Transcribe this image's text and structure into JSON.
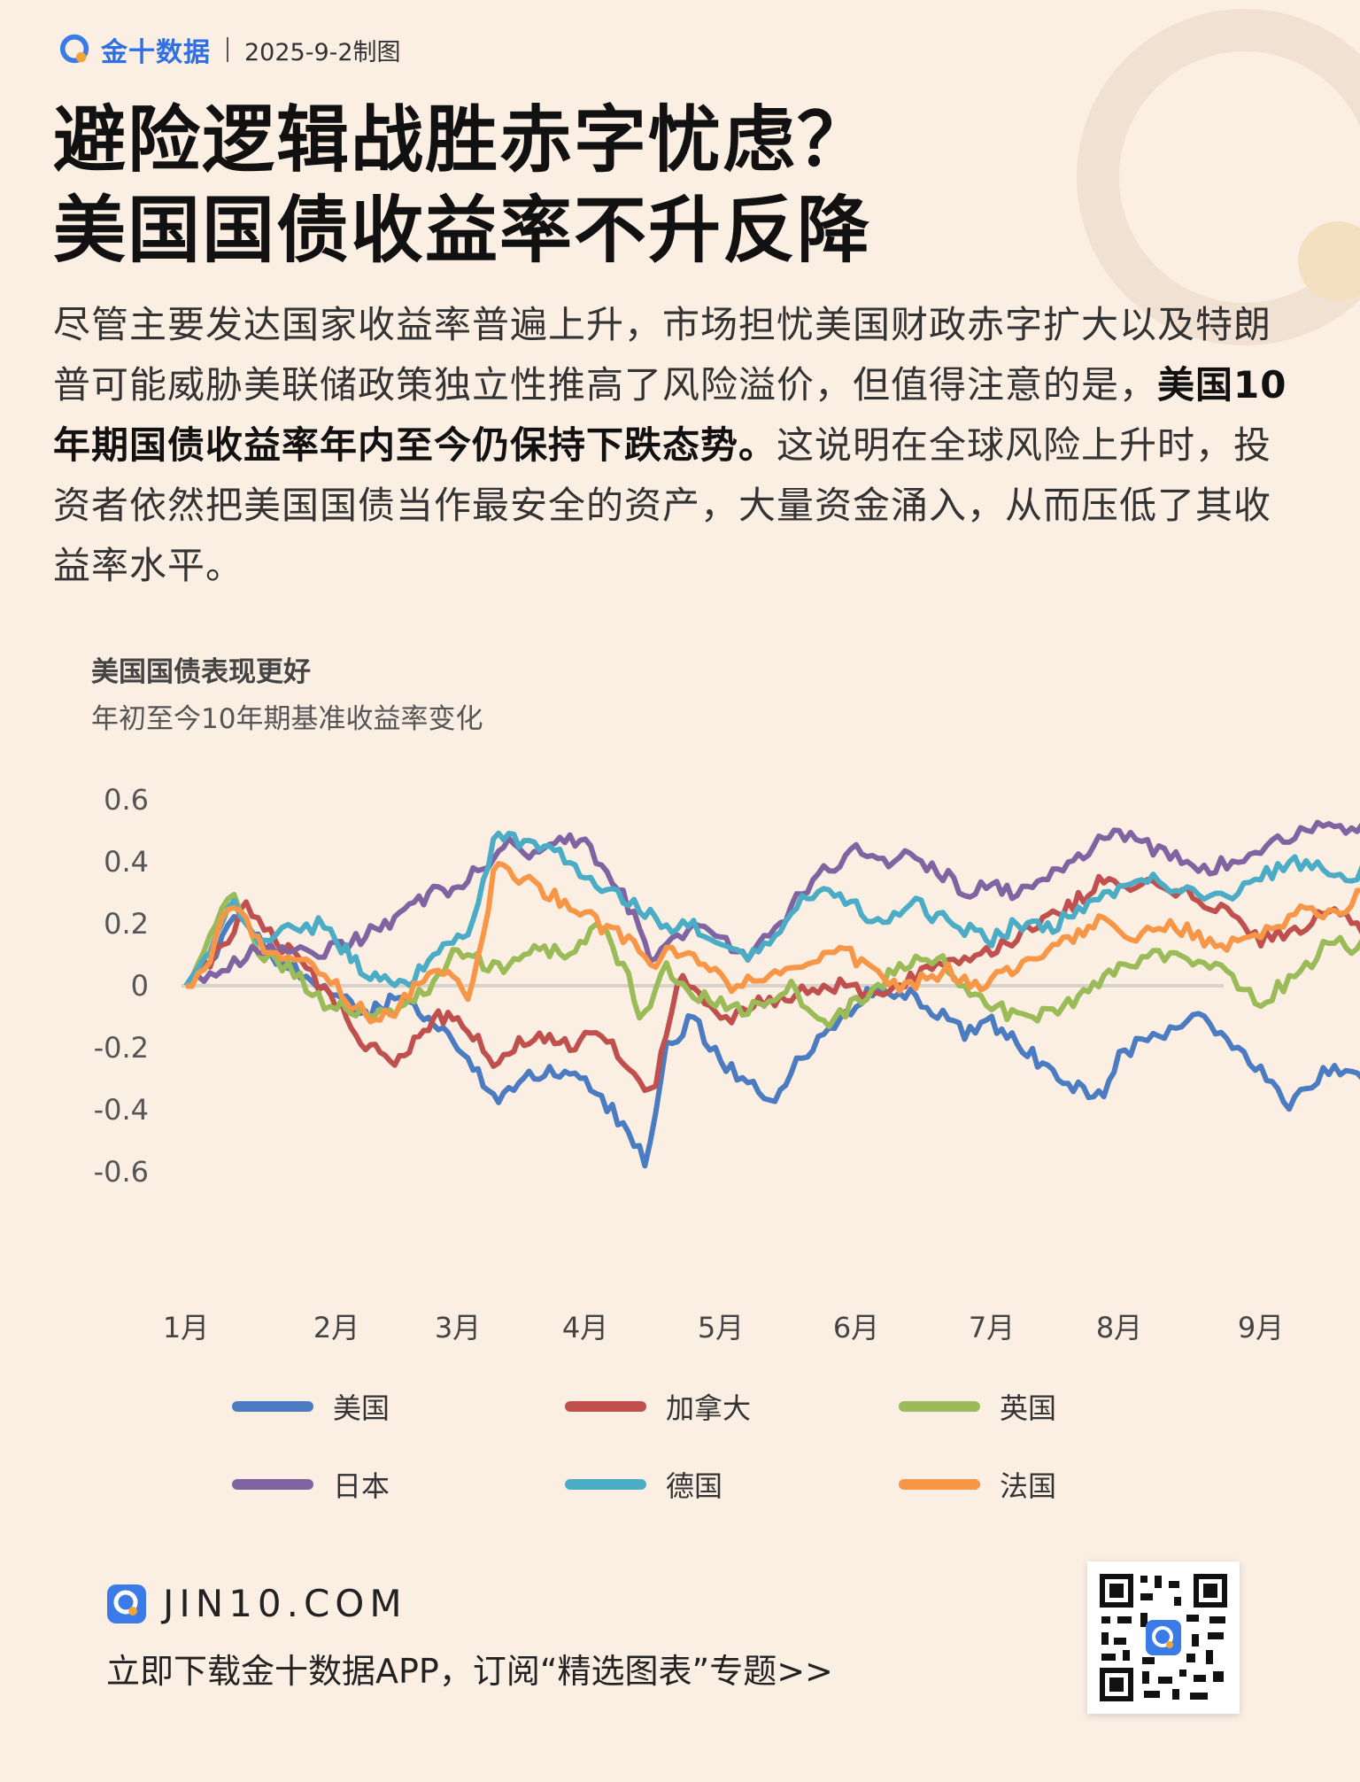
{
  "header": {
    "brand": "金十数据",
    "date": "2025-9-2制图"
  },
  "title": {
    "line1": "避险逻辑战胜赤字忧虑？",
    "line2": "美国国债收益率不升反降"
  },
  "body": {
    "part1": "尽管主要发达国家收益率普遍上升，市场担忧美国财政赤字扩大以及特朗普可能威胁美联储政策独立性推高了风险溢价，但值得注意的是，",
    "bold": "美国10年期国债收益率年内至今仍保持下跌态势。",
    "part2": "这说明在全球风险上升时，投资者依然把美国国债当作最安全的资产，大量资金涌入，从而压低了其收益率水平。"
  },
  "chart_data": {
    "type": "line",
    "title": "美国国债表现更好",
    "subtitle": "年初至今10年期基准收益率变化",
    "x_ticks": [
      "1月",
      "2月",
      "3月",
      "4月",
      "5月",
      "6月",
      "7月",
      "8月",
      "9月"
    ],
    "y_ticks": [
      "0.6",
      "0.4",
      "0.2",
      "0",
      "-0.2",
      "-0.4",
      "-0.6"
    ],
    "ylim": [
      -0.6,
      0.6
    ],
    "grid": false,
    "legend_position": "bottom",
    "x_knots": [
      0,
      0.1,
      0.3,
      0.5,
      0.7,
      0.9,
      1.0,
      1.2,
      1.4,
      1.6,
      1.8,
      2.0,
      2.2,
      2.4,
      2.6,
      2.8,
      3.0,
      3.2,
      3.4,
      3.6,
      3.8,
      4.0,
      4.2,
      4.4,
      4.6,
      4.8,
      5.0,
      5.2,
      5.4,
      5.6,
      5.8,
      6.0,
      6.2,
      6.4,
      6.6,
      6.8,
      7.0,
      7.2,
      7.4,
      7.6,
      7.8,
      8.0,
      8.2,
      8.4,
      8.6,
      8.8,
      9.0,
      9.2,
      9.4,
      9.6,
      9.8,
      10.0
    ],
    "x_note": "x in months since Jan 1 (1月=0, 9月=8)",
    "series": [
      {
        "name": "美国",
        "color": "#4b7bc0",
        "x": [
          0.0,
          0.1,
          0.35,
          0.55,
          0.8,
          1.0,
          1.2,
          1.45,
          1.7,
          1.9,
          2.1,
          2.3,
          2.5,
          2.8,
          3.0,
          3.3,
          3.45,
          3.6,
          3.8,
          4.0,
          4.2,
          4.35,
          4.55,
          4.8,
          5.0,
          5.2,
          5.5,
          5.8,
          6.0,
          6.3,
          6.6,
          6.9,
          7.0,
          7.3,
          7.55,
          7.75,
          8.0,
          8.2,
          8.45,
          8.65,
          8.8
        ],
        "y": [
          0.0,
          0.05,
          0.22,
          0.1,
          0.03,
          -0.02,
          -0.1,
          -0.05,
          -0.08,
          -0.15,
          -0.25,
          -0.38,
          -0.3,
          -0.28,
          -0.32,
          -0.45,
          -0.58,
          -0.2,
          -0.1,
          -0.25,
          -0.3,
          -0.4,
          -0.25,
          -0.15,
          -0.05,
          0.0,
          -0.05,
          -0.15,
          -0.12,
          -0.22,
          -0.32,
          -0.35,
          -0.22,
          -0.15,
          -0.1,
          -0.18,
          -0.28,
          -0.38,
          -0.28,
          -0.25,
          -0.34
        ]
      },
      {
        "name": "加拿大",
        "color": "#c0504d",
        "x": [
          0.0,
          0.2,
          0.4,
          0.6,
          0.8,
          1.0,
          1.2,
          1.5,
          1.8,
          2.0,
          2.3,
          2.6,
          2.9,
          3.1,
          3.3,
          3.5,
          3.7,
          4.0,
          4.3,
          4.6,
          4.9,
          5.2,
          5.5,
          5.8,
          6.0,
          6.3,
          6.6,
          6.9,
          7.2,
          7.5,
          7.8,
          8.0,
          8.3,
          8.5,
          8.7,
          8.8
        ],
        "y": [
          0.0,
          0.1,
          0.25,
          0.15,
          0.05,
          -0.05,
          -0.18,
          -0.25,
          -0.1,
          -0.1,
          -0.25,
          -0.15,
          -0.2,
          -0.15,
          -0.25,
          -0.35,
          0.03,
          -0.12,
          -0.05,
          -0.02,
          0.0,
          -0.05,
          0.05,
          0.1,
          0.12,
          0.18,
          0.25,
          0.35,
          0.32,
          0.3,
          0.22,
          0.15,
          0.18,
          0.25,
          0.2,
          0.15
        ]
      },
      {
        "name": "英国",
        "color": "#9bbb59",
        "x": [
          0.0,
          0.15,
          0.3,
          0.5,
          0.7,
          0.9,
          1.1,
          1.4,
          1.6,
          1.8,
          2.0,
          2.3,
          2.6,
          2.9,
          3.1,
          3.3,
          3.4,
          3.6,
          3.9,
          4.2,
          4.5,
          4.8,
          5.0,
          5.3,
          5.6,
          5.9,
          6.2,
          6.5,
          6.8,
          7.1,
          7.4,
          7.7,
          8.0,
          8.3,
          8.5,
          8.7,
          8.8
        ],
        "y": [
          0.0,
          0.15,
          0.3,
          0.1,
          0.05,
          -0.05,
          -0.08,
          -0.1,
          -0.05,
          0.0,
          0.12,
          0.05,
          0.12,
          0.1,
          0.2,
          0.05,
          -0.12,
          0.05,
          -0.05,
          -0.08,
          0.0,
          -0.12,
          -0.05,
          0.05,
          0.1,
          -0.05,
          -0.1,
          -0.08,
          0.0,
          0.08,
          0.1,
          0.05,
          -0.05,
          0.05,
          0.15,
          0.12,
          0.18
        ]
      },
      {
        "name": "日本",
        "color": "#8064a2",
        "x": [
          0.0,
          0.2,
          0.4,
          0.6,
          0.8,
          1.0,
          1.2,
          1.4,
          1.6,
          1.8,
          2.0,
          2.2,
          2.4,
          2.6,
          2.8,
          3.0,
          3.2,
          3.4,
          3.5,
          3.6,
          3.8,
          4.0,
          4.2,
          4.4,
          4.6,
          4.8,
          5.0,
          5.2,
          5.4,
          5.6,
          5.8,
          6.0,
          6.2,
          6.4,
          6.6,
          6.8,
          7.0,
          7.2,
          7.4,
          7.6,
          7.8,
          8.0,
          8.2,
          8.4,
          8.6,
          8.8
        ],
        "y": [
          0.0,
          0.05,
          0.1,
          0.12,
          0.1,
          0.12,
          0.15,
          0.2,
          0.25,
          0.3,
          0.32,
          0.38,
          0.48,
          0.42,
          0.48,
          0.45,
          0.35,
          0.2,
          0.05,
          0.15,
          0.18,
          0.15,
          0.1,
          0.18,
          0.3,
          0.38,
          0.45,
          0.4,
          0.42,
          0.38,
          0.3,
          0.32,
          0.3,
          0.35,
          0.4,
          0.45,
          0.5,
          0.45,
          0.42,
          0.38,
          0.4,
          0.45,
          0.48,
          0.52,
          0.5,
          0.52
        ]
      },
      {
        "name": "德国",
        "color": "#4bacc6",
        "x": [
          0.0,
          0.15,
          0.3,
          0.5,
          0.7,
          0.9,
          1.1,
          1.3,
          1.5,
          1.7,
          1.9,
          2.1,
          2.3,
          2.6,
          2.8,
          3.0,
          3.2,
          3.4,
          3.6,
          3.8,
          4.0,
          4.2,
          4.4,
          4.6,
          4.8,
          5.0,
          5.2,
          5.4,
          5.6,
          5.8,
          6.0,
          6.2,
          6.4,
          6.6,
          6.8,
          7.0,
          7.2,
          7.4,
          7.6,
          7.8,
          8.0,
          8.2,
          8.4,
          8.6,
          8.8
        ],
        "y": [
          0.0,
          0.1,
          0.28,
          0.15,
          0.18,
          0.2,
          0.1,
          0.02,
          0.0,
          0.05,
          0.12,
          0.18,
          0.5,
          0.45,
          0.42,
          0.35,
          0.3,
          0.25,
          0.18,
          0.2,
          0.12,
          0.1,
          0.15,
          0.28,
          0.3,
          0.25,
          0.2,
          0.28,
          0.22,
          0.18,
          0.15,
          0.2,
          0.18,
          0.22,
          0.28,
          0.3,
          0.35,
          0.32,
          0.28,
          0.3,
          0.35,
          0.4,
          0.38,
          0.35,
          0.38
        ]
      },
      {
        "name": "法国",
        "color": "#f79646",
        "x": [
          0.0,
          0.15,
          0.3,
          0.5,
          0.7,
          0.9,
          1.1,
          1.3,
          1.5,
          1.7,
          1.9,
          2.1,
          2.3,
          2.5,
          2.7,
          2.9,
          3.1,
          3.3,
          3.5,
          3.7,
          3.9,
          4.1,
          4.3,
          4.5,
          4.7,
          4.9,
          5.1,
          5.3,
          5.5,
          5.7,
          5.9,
          6.1,
          6.3,
          6.5,
          6.7,
          6.9,
          7.1,
          7.3,
          7.5,
          7.7,
          7.9,
          8.1,
          8.3,
          8.5,
          8.7,
          8.8
        ],
        "y": [
          0.0,
          0.08,
          0.28,
          0.12,
          0.1,
          0.05,
          -0.05,
          -0.1,
          -0.08,
          0.02,
          0.05,
          -0.05,
          0.4,
          0.35,
          0.3,
          0.25,
          0.2,
          0.15,
          0.08,
          0.12,
          0.05,
          0.0,
          0.02,
          0.05,
          0.1,
          0.12,
          0.05,
          0.0,
          0.02,
          0.05,
          0.0,
          0.05,
          0.08,
          0.12,
          0.18,
          0.22,
          0.15,
          0.2,
          0.18,
          0.12,
          0.15,
          0.18,
          0.25,
          0.22,
          0.3,
          0.35
        ]
      }
    ]
  },
  "footer": {
    "site": "JIN10.COM",
    "cta": "立即下载金十数据APP，订阅“精选图表”专题>>"
  }
}
